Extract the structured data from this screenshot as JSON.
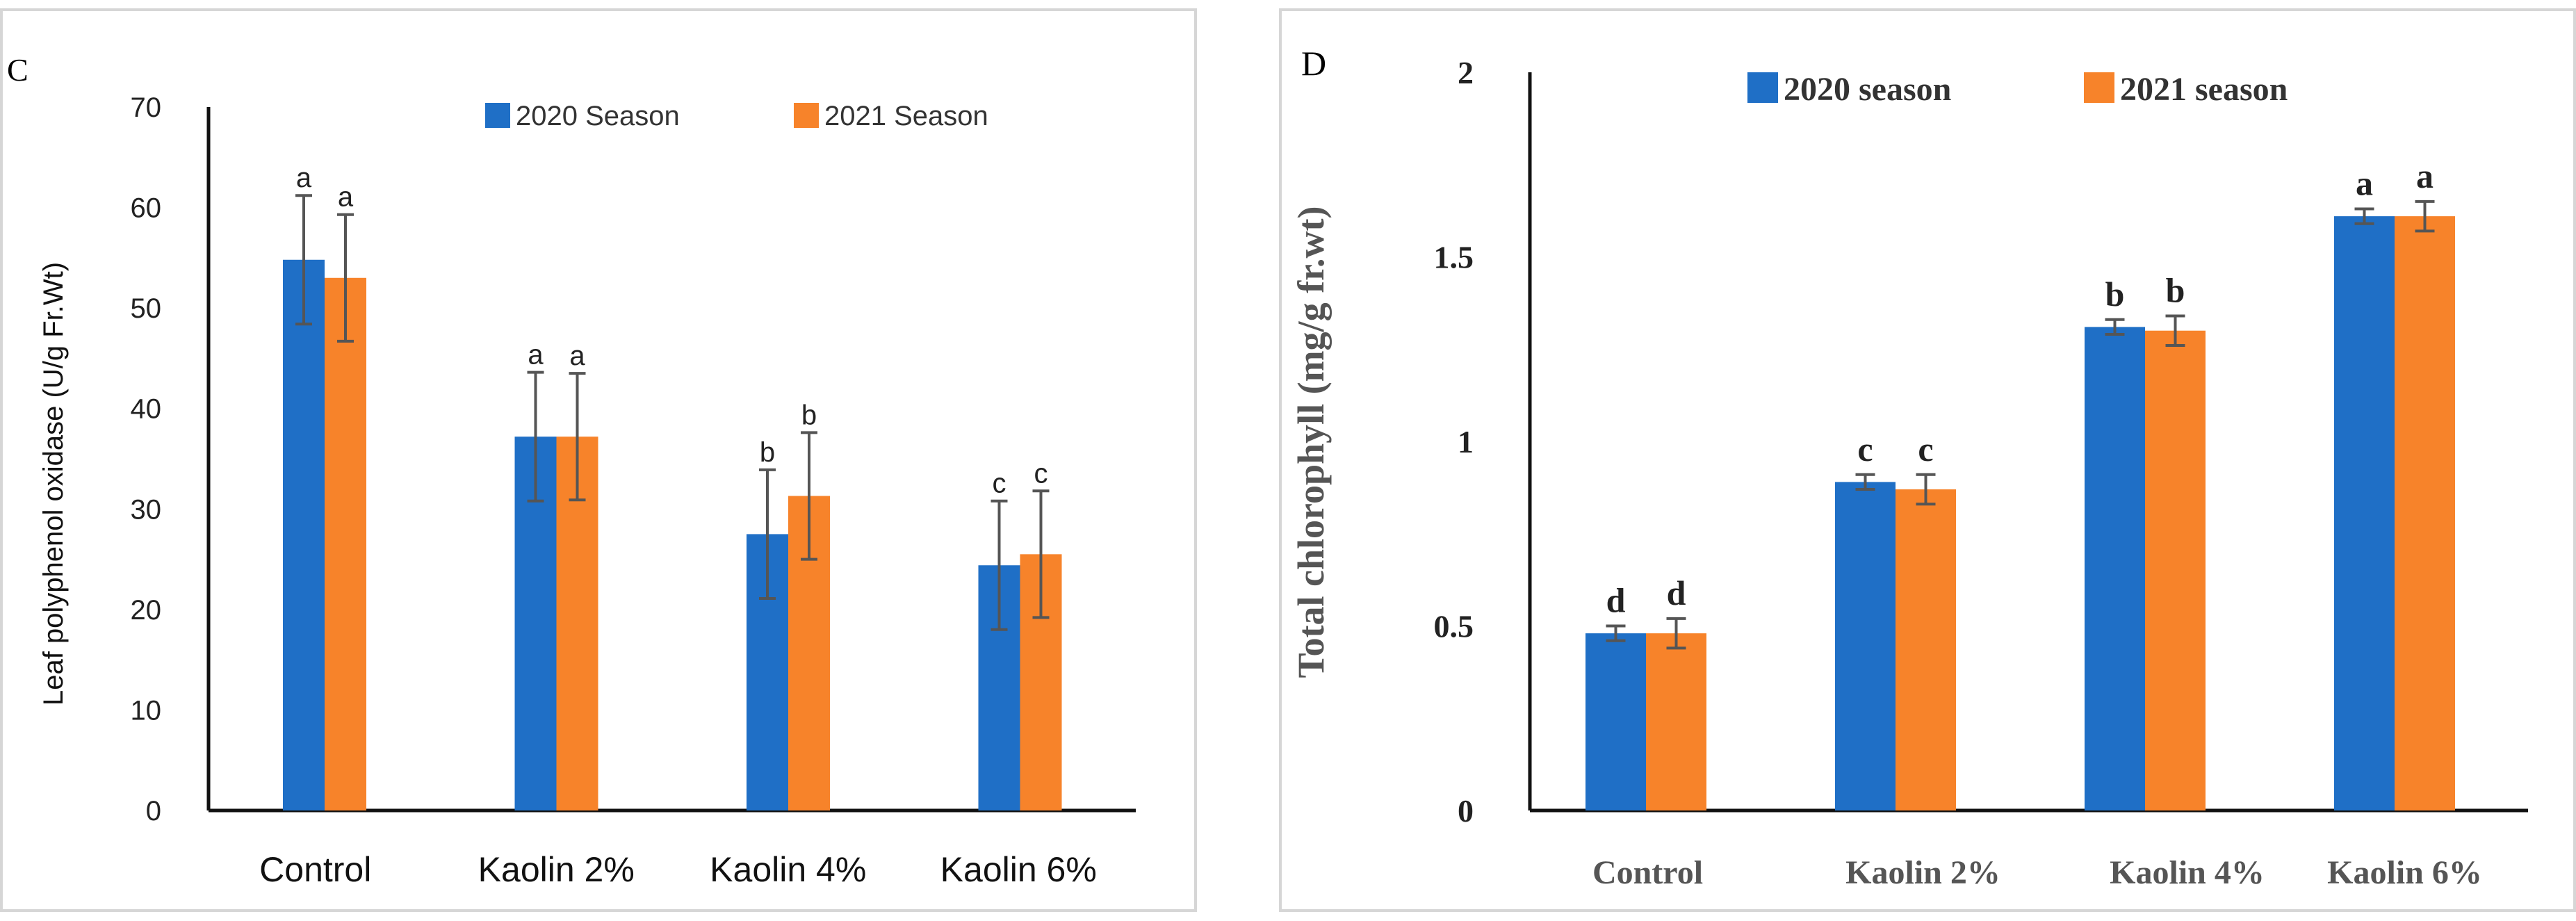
{
  "chart_data": [
    {
      "panel_letter": "C",
      "type": "bar",
      "title": "",
      "xlabel": "",
      "ylabel": "Leaf polyphenol oxidase (U/g Fr.Wt)",
      "ylim": [
        0,
        70
      ],
      "y_ticks": [
        "0",
        "10",
        "20",
        "30",
        "40",
        "50",
        "60",
        "70"
      ],
      "categories": [
        "Control",
        "Kaolin 2%",
        "Kaolin  4%",
        "Kaolin  6%"
      ],
      "legend_position": "top-right",
      "series": [
        {
          "name": "2020 Season",
          "color": "#1f6fc6",
          "values": [
            54.8,
            37.2,
            27.5,
            24.4
          ],
          "errors": [
            6.4,
            6.4,
            6.4,
            6.4
          ],
          "labels": [
            "a",
            "a",
            "b",
            "c"
          ]
        },
        {
          "name": "2021 Season",
          "color": "#f7832a",
          "values": [
            53.0,
            37.2,
            31.3,
            25.5
          ],
          "errors": [
            6.3,
            6.3,
            6.3,
            6.3
          ],
          "labels": [
            "a",
            "a",
            "b",
            "c"
          ]
        }
      ]
    },
    {
      "panel_letter": "D",
      "type": "bar",
      "title": "",
      "xlabel": "",
      "ylabel": "Total chlorophyll  (mg/g fr.wt)",
      "ylim": [
        0,
        2
      ],
      "y_ticks": [
        "0",
        "0.5",
        "1",
        "1.5",
        "2"
      ],
      "categories": [
        "Control",
        "Kaolin 2%",
        "Kaolin  4%",
        "Kaolin  6%"
      ],
      "legend_position": "top",
      "series": [
        {
          "name": "2020 season",
          "color": "#1f6fc6",
          "values": [
            0.48,
            0.89,
            1.31,
            1.61
          ],
          "errors": [
            0.02,
            0.02,
            0.02,
            0.02
          ],
          "labels": [
            "d",
            "c",
            "b",
            "a"
          ]
        },
        {
          "name": "2021 season",
          "color": "#f7832a",
          "values": [
            0.48,
            0.87,
            1.3,
            1.61
          ],
          "errors": [
            0.04,
            0.04,
            0.04,
            0.04
          ],
          "labels": [
            "d",
            "c",
            "b",
            "a"
          ]
        }
      ]
    }
  ]
}
